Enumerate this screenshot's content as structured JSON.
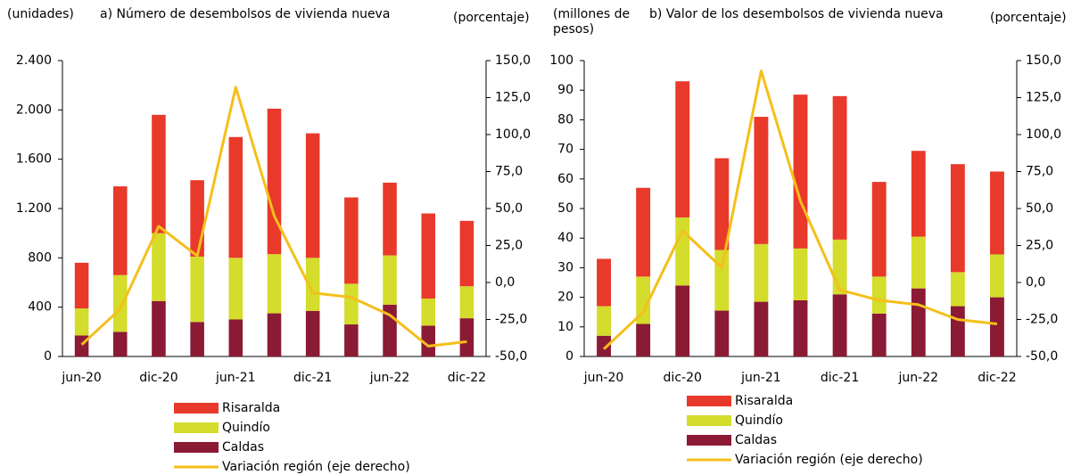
{
  "chart_data": [
    {
      "type": "bar",
      "stacked": true,
      "title": "a) Número de desembolsos de vivienda nueva",
      "ylabel": "(unidades)",
      "y2label": "(porcentaje)",
      "categories": [
        "jun-20",
        null,
        "dic-20",
        null,
        "jun-21",
        null,
        "dic-21",
        null,
        "jun-22",
        null,
        "dic-22"
      ],
      "series": [
        {
          "name": "Risaralda",
          "color": "#e8392a",
          "values": [
            370,
            720,
            960,
            620,
            980,
            1180,
            1010,
            700,
            590,
            690,
            530
          ]
        },
        {
          "name": "Quindío",
          "color": "#d4dc2c",
          "values": [
            220,
            460,
            550,
            530,
            500,
            480,
            430,
            330,
            400,
            220,
            260
          ]
        },
        {
          "name": "Caldas",
          "color": "#8b1a34",
          "values": [
            170,
            200,
            450,
            280,
            300,
            350,
            370,
            260,
            420,
            250,
            310
          ]
        },
        {
          "name": "Variación región (eje derecho)",
          "color": "#f5bf1a",
          "type": "line",
          "axis": "y2",
          "values": [
            -42,
            -18,
            38,
            18,
            132,
            45,
            -7,
            -10,
            -22,
            -43,
            -40
          ]
        }
      ],
      "ylim": [
        0,
        2400
      ],
      "yticks": [
        0,
        400,
        800,
        {
          "value": 1200,
          "label": "1.200"
        },
        {
          "value": 1600,
          "label": "1.600"
        },
        {
          "value": 2000,
          "label": "2.000"
        },
        {
          "value": 2400,
          "label": "2.400"
        }
      ],
      "y2lim": [
        -50,
        150
      ],
      "y2ticks": [
        {
          "value": -50,
          "label": "-50,0"
        },
        {
          "value": -25,
          "label": "-25,0"
        },
        {
          "value": 0,
          "label": "0,0"
        },
        {
          "value": 25,
          "label": "25,0"
        },
        {
          "value": 50,
          "label": "50,0"
        },
        {
          "value": 75,
          "label": "75,0"
        },
        {
          "value": 100,
          "label": "100,0"
        },
        {
          "value": 125,
          "label": "125,0"
        },
        {
          "value": 150,
          "label": "150,0"
        }
      ]
    },
    {
      "type": "bar",
      "stacked": true,
      "title": "b) Valor de los desembolsos de vivienda nueva",
      "ylabel": "(millones de pesos)",
      "y2label": "(porcentaje)",
      "categories": [
        "jun-20",
        null,
        "dic-20",
        null,
        "jun-21",
        null,
        "dic-21",
        null,
        "jun-22",
        null,
        "dic-22"
      ],
      "series": [
        {
          "name": "Risaralda",
          "color": "#e8392a",
          "values": [
            16,
            30,
            46,
            31,
            43,
            52,
            48.5,
            32,
            29,
            36.5,
            28
          ]
        },
        {
          "name": "Quindío",
          "color": "#d4dc2c",
          "values": [
            10,
            16,
            23,
            20.5,
            19.5,
            17.5,
            18.5,
            12.5,
            17.5,
            11.5,
            14.5
          ]
        },
        {
          "name": "Caldas",
          "color": "#8b1a34",
          "values": [
            7,
            11,
            24,
            15.5,
            18.5,
            19,
            21,
            14.5,
            23,
            17,
            20
          ]
        },
        {
          "name": "Variación región (eje derecho)",
          "color": "#f5bf1a",
          "type": "line",
          "axis": "y2",
          "values": [
            -45,
            -20,
            35,
            10,
            143,
            55,
            -5,
            -12,
            -15,
            -25,
            -28
          ]
        }
      ],
      "ylim": [
        0,
        100
      ],
      "yticks": [
        0,
        10,
        20,
        30,
        40,
        50,
        60,
        70,
        80,
        90,
        100
      ],
      "y2lim": [
        -50,
        150
      ],
      "y2ticks": [
        {
          "value": -50,
          "label": "-50,0"
        },
        {
          "value": -25,
          "label": "-25,0"
        },
        {
          "value": 0,
          "label": "0,0"
        },
        {
          "value": 25,
          "label": "25,0"
        },
        {
          "value": 50,
          "label": "50,0"
        },
        {
          "value": 75,
          "label": "75,0"
        },
        {
          "value": 100,
          "label": "100,0"
        },
        {
          "value": 125,
          "label": "125,0"
        },
        {
          "value": 150,
          "label": "150,0"
        }
      ]
    }
  ]
}
